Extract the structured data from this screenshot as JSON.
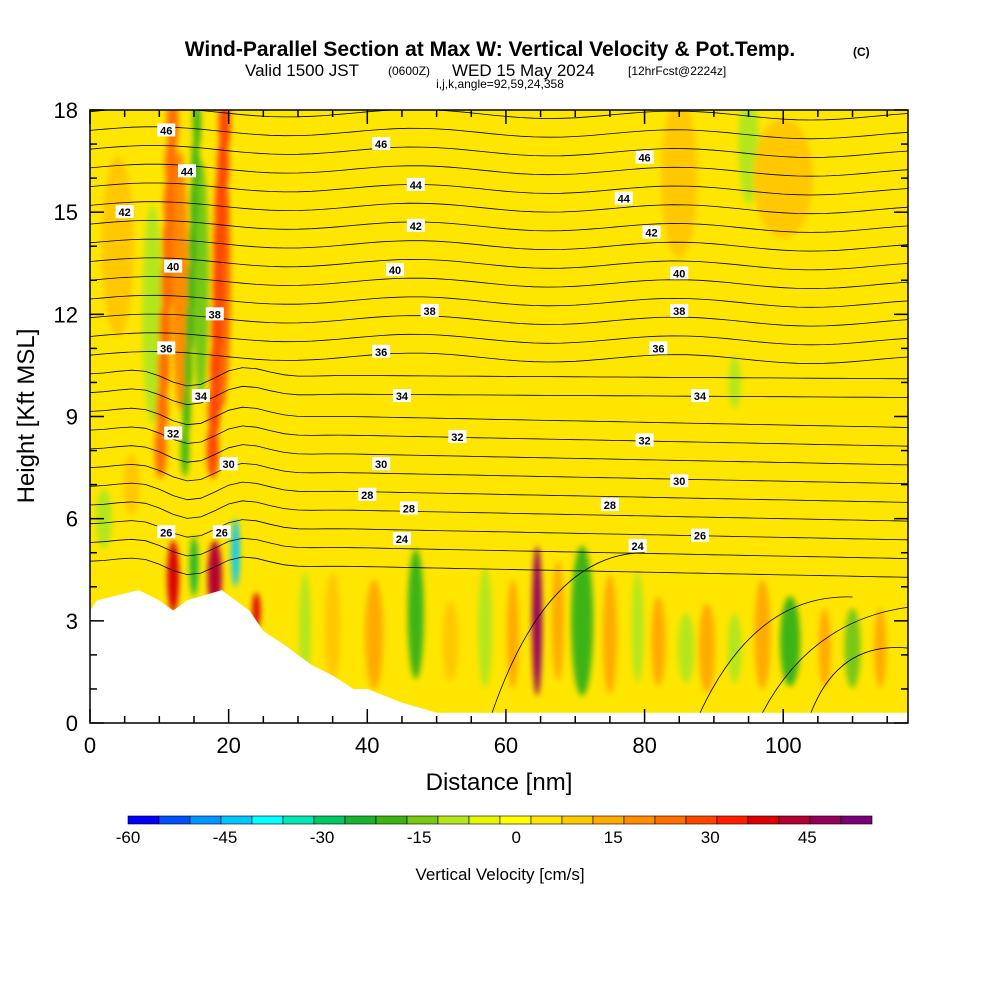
{
  "header": {
    "title": "Wind-Parallel Section at Max W: Vertical Velocity & Pot.Temp.",
    "title_mark": "(C)",
    "valid_prefix": "Valid 1500 JST",
    "valid_zulu": "(0600Z)",
    "valid_date": "WED 15 May 2024",
    "forecast": "[12hrFcst@2224z]",
    "indices": "i,j,k,angle=92,59,24,358"
  },
  "chart_data": {
    "type": "heatmap",
    "xlabel": "Distance [nm]",
    "ylabel": "Height [Kft MSL]",
    "xlim": [
      0,
      118
    ],
    "ylim": [
      0,
      18
    ],
    "x_ticks": [
      0,
      20,
      40,
      60,
      80,
      100
    ],
    "y_ticks": [
      0,
      3,
      6,
      9,
      12,
      15,
      18
    ],
    "colorbar": {
      "label": "Vertical Velocity [cm/s]",
      "min": -60,
      "max": 55,
      "tick_values": [
        -60,
        -45,
        -30,
        -15,
        0,
        15,
        30,
        45
      ],
      "colors": [
        "#0000ff",
        "#0050ff",
        "#0096ff",
        "#00c8ff",
        "#00ffff",
        "#00e6b4",
        "#00c864",
        "#18b430",
        "#3cb414",
        "#78c814",
        "#b4e61e",
        "#e6f500",
        "#ffff00",
        "#ffe600",
        "#ffc800",
        "#ffaa00",
        "#ff8c00",
        "#ff6e00",
        "#ff4600",
        "#ff1e00",
        "#dc0000",
        "#b40032",
        "#96005a",
        "#780078"
      ]
    },
    "terrain_nm_kft": [
      [
        0,
        3.3
      ],
      [
        1,
        3.6
      ],
      [
        7,
        3.9
      ],
      [
        10,
        3.6
      ],
      [
        12,
        3.3
      ],
      [
        14,
        3.6
      ],
      [
        19,
        3.9
      ],
      [
        21,
        3.6
      ],
      [
        23,
        3.3
      ],
      [
        25,
        2.7
      ],
      [
        28,
        2.3
      ],
      [
        30,
        2.0
      ],
      [
        32,
        1.7
      ],
      [
        35,
        1.4
      ],
      [
        38,
        1.0
      ],
      [
        40,
        1.0
      ],
      [
        45,
        0.6
      ],
      [
        50,
        0.3
      ],
      [
        118,
        0.3
      ]
    ],
    "vertical_velocity_features_cm_s": [
      {
        "x_nm": 12,
        "z_kft": 4.5,
        "value": 40
      },
      {
        "x_nm": 18,
        "z_kft": 4.5,
        "value": 40
      },
      {
        "x_nm": 21,
        "z_kft": 5.0,
        "value": -40
      },
      {
        "x_nm": 64.5,
        "z_kft": 3.0,
        "value": 50
      },
      {
        "x_nm": 71,
        "z_kft": 3.0,
        "value": -15
      }
    ],
    "potential_temperature_labels": [
      {
        "text": "46",
        "x": 11,
        "z": 17.4
      },
      {
        "text": "46",
        "x": 42,
        "z": 17.0
      },
      {
        "text": "46",
        "x": 80,
        "z": 16.6
      },
      {
        "text": "44",
        "x": 14,
        "z": 16.2
      },
      {
        "text": "44",
        "x": 47,
        "z": 15.8
      },
      {
        "text": "44",
        "x": 77,
        "z": 15.4
      },
      {
        "text": "42",
        "x": 5,
        "z": 15.0
      },
      {
        "text": "42",
        "x": 47,
        "z": 14.6
      },
      {
        "text": "42",
        "x": 81,
        "z": 14.4
      },
      {
        "text": "40",
        "x": 12,
        "z": 13.4
      },
      {
        "text": "40",
        "x": 44,
        "z": 13.3
      },
      {
        "text": "40",
        "x": 85,
        "z": 13.2
      },
      {
        "text": "38",
        "x": 18,
        "z": 12.0
      },
      {
        "text": "38",
        "x": 49,
        "z": 12.1
      },
      {
        "text": "38",
        "x": 85,
        "z": 12.1
      },
      {
        "text": "36",
        "x": 11,
        "z": 11.0
      },
      {
        "text": "36",
        "x": 42,
        "z": 10.9
      },
      {
        "text": "36",
        "x": 82,
        "z": 11.0
      },
      {
        "text": "34",
        "x": 16,
        "z": 9.6
      },
      {
        "text": "34",
        "x": 45,
        "z": 9.6
      },
      {
        "text": "34",
        "x": 88,
        "z": 9.6
      },
      {
        "text": "32",
        "x": 12,
        "z": 8.5
      },
      {
        "text": "32",
        "x": 53,
        "z": 8.4
      },
      {
        "text": "32",
        "x": 80,
        "z": 8.3
      },
      {
        "text": "30",
        "x": 20,
        "z": 7.6
      },
      {
        "text": "30",
        "x": 42,
        "z": 7.6
      },
      {
        "text": "30",
        "x": 85,
        "z": 7.1
      },
      {
        "text": "28",
        "x": 40,
        "z": 6.7
      },
      {
        "text": "28",
        "x": 46,
        "z": 6.3
      },
      {
        "text": "28",
        "x": 75,
        "z": 6.4
      },
      {
        "text": "26",
        "x": 11,
        "z": 5.6
      },
      {
        "text": "26",
        "x": 19,
        "z": 5.6
      },
      {
        "text": "26",
        "x": 88,
        "z": 5.5
      },
      {
        "text": "24",
        "x": 45,
        "z": 5.4
      },
      {
        "text": "24",
        "x": 79,
        "z": 5.2
      }
    ]
  }
}
